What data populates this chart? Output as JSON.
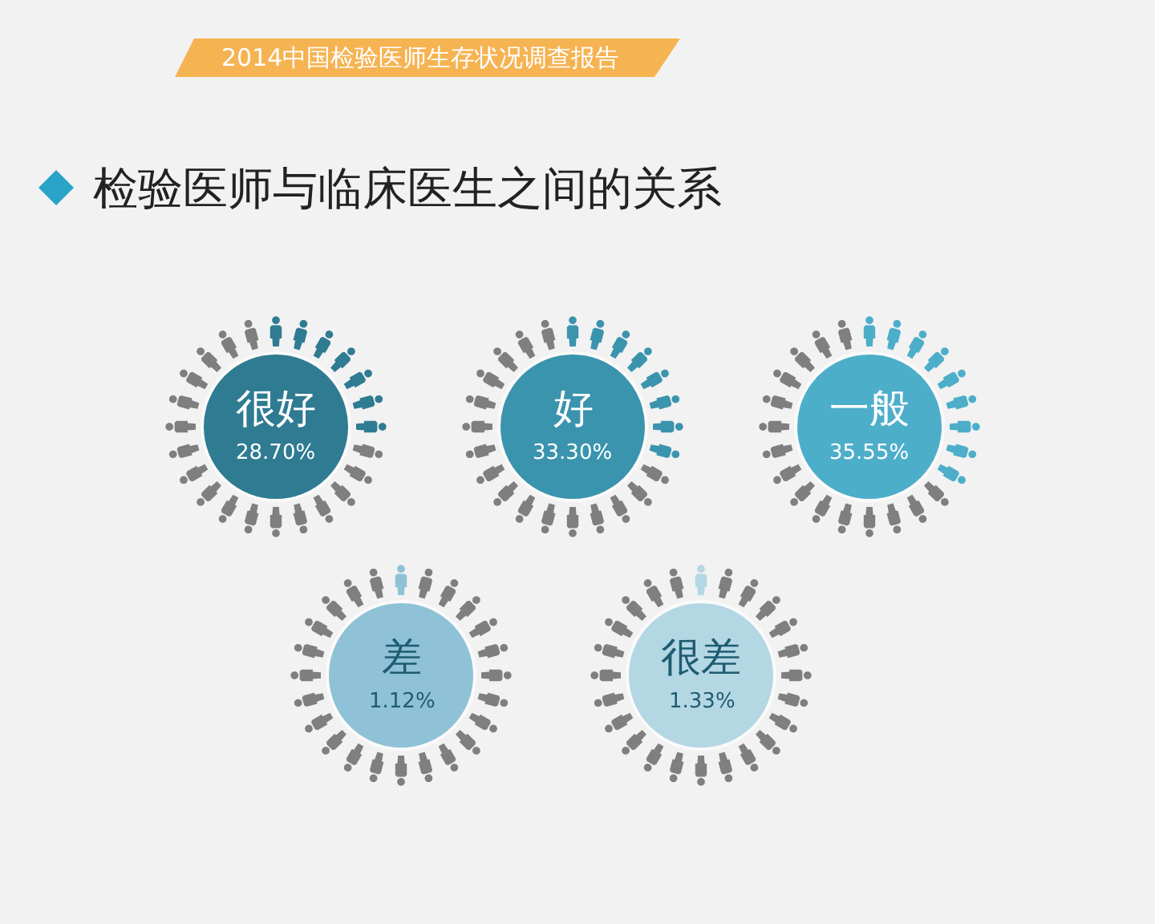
{
  "chart_data": {
    "type": "other",
    "title": "检验医师与临床医生之间的关系",
    "annotations": [
      "2014中国检验医师生存状况调查报告"
    ],
    "categories": [
      "很好",
      "好",
      "一般",
      "差",
      "很差"
    ],
    "values": [
      28.7,
      33.3,
      35.55,
      1.12,
      1.33
    ],
    "value_labels": [
      "28.70%",
      "33.30%",
      "35.55%",
      "1.12%",
      "1.33%"
    ],
    "colors": [
      "#2f7b92",
      "#3b94ad",
      "#4daeca",
      "#8fc2d6",
      "#b4d7e4"
    ]
  }
}
